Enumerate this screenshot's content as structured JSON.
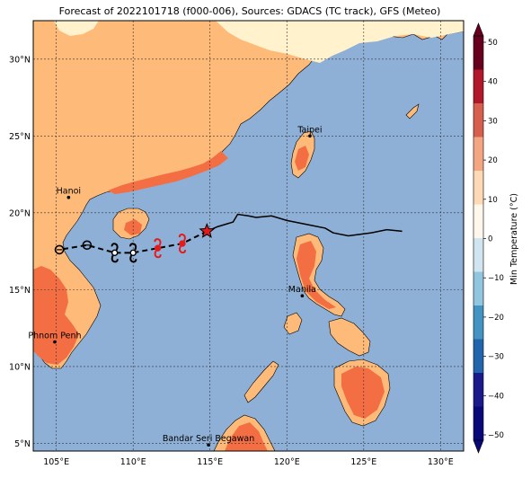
{
  "title": "Forecast of 2022101718 (f000-006), Sources: GDACS (TC track), GFS (Meteo)",
  "colors": {
    "ocean": "#8fb0d6",
    "land_10_20": "#fdba78",
    "land_20_30": "#f46e44",
    "land_0_10": "#fff2cc",
    "track_past": "#000000",
    "track_forecast": "#000000",
    "current_star": "#e41a1c",
    "forecast_symbol_red": "#e41a1c"
  },
  "map": {
    "lon_range": [
      103.5,
      131.5
    ],
    "lat_range": [
      4.5,
      32.5
    ],
    "lon_ticks": [
      "105°E",
      "110°E",
      "115°E",
      "120°E",
      "125°E",
      "130°E"
    ],
    "lat_ticks": [
      "5°N",
      "10°N",
      "15°N",
      "20°N",
      "25°N",
      "30°N"
    ],
    "gridlines": true
  },
  "cities": [
    {
      "name": "Taipei",
      "lon": 121.5,
      "lat": 25.0
    },
    {
      "name": "Hanoi",
      "lon": 105.8,
      "lat": 21.0
    },
    {
      "name": "Manila",
      "lon": 121.0,
      "lat": 14.6
    },
    {
      "name": "Phnom Penh",
      "lon": 104.9,
      "lat": 11.6
    },
    {
      "name": "Bandar Seri Begawan",
      "lon": 114.9,
      "lat": 4.9
    }
  ],
  "track": {
    "past": [
      [
        127.5,
        18.8
      ],
      [
        126.5,
        18.9
      ],
      [
        125.5,
        18.7
      ],
      [
        124.0,
        18.5
      ],
      [
        123.0,
        18.7
      ],
      [
        122.5,
        19.0
      ],
      [
        121.5,
        19.2
      ],
      [
        120.0,
        19.5
      ],
      [
        119.0,
        19.8
      ],
      [
        118.0,
        19.7
      ],
      [
        117.5,
        19.8
      ],
      [
        116.8,
        19.9
      ],
      [
        116.5,
        19.4
      ],
      [
        115.5,
        19.1
      ],
      [
        114.8,
        18.8
      ]
    ],
    "current": [
      114.8,
      18.8
    ],
    "forecast": [
      [
        113.2,
        18.0
      ],
      [
        111.6,
        17.7
      ],
      [
        110.0,
        17.4
      ],
      [
        108.8,
        17.4
      ],
      [
        107.0,
        17.9
      ],
      [
        105.2,
        17.6
      ]
    ],
    "forecast_symbols": [
      "tropical-storm-red",
      "tropical-storm-red",
      "tropical-depression",
      "tropical-depression",
      "low",
      "low"
    ]
  },
  "colorbar": {
    "label": "Min Temperature (°C)",
    "ticks": [
      "50",
      "40",
      "30",
      "20",
      "10",
      "0",
      "−10",
      "−20",
      "−30",
      "−40",
      "−50"
    ],
    "bands": [
      "#67001f",
      "#b2182b",
      "#d6604d",
      "#f4a582",
      "#fdd9b5",
      "#fff7ec",
      "#d1e5f0",
      "#92c5de",
      "#4393c3",
      "#2166ac",
      "#1a1a8c",
      "#08087a"
    ]
  }
}
